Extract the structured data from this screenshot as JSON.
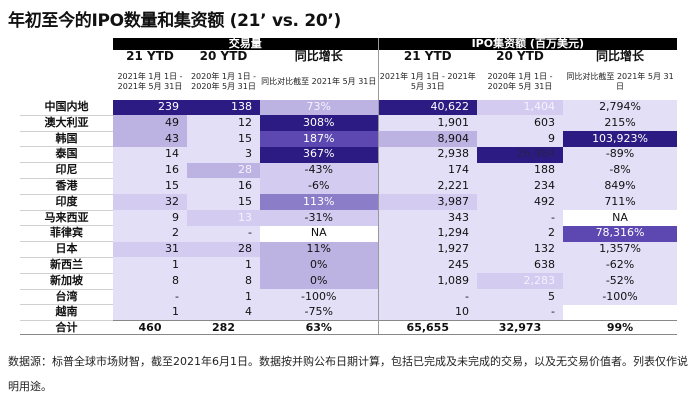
{
  "title": "年初至今的IPO数量和集资额 (21’ vs. 20’)",
  "headers": {
    "group1": "交易量",
    "group2": "IPO集资额 (百万美元)",
    "ytd21": "21 YTD",
    "ytd20": "20 YTD",
    "yoy": "同比增长",
    "d21": "2021年 1月 1日 - 2021年 5月 31日",
    "d20": "2020年 1月 1日 - 2020年 5月 31日",
    "dyoy": "同比对比截至 2021年 5月 31日"
  },
  "rows": [
    {
      "name": "中国内地",
      "v": [
        "239",
        "138",
        "73%",
        "40,622",
        "1,404",
        "2,794%"
      ],
      "s": [
        5,
        5,
        3,
        5,
        2,
        1
      ],
      "t": [
        "",
        "",
        "lt",
        "",
        "lt",
        ""
      ]
    },
    {
      "name": "澳大利亚",
      "v": [
        "49",
        "12",
        "308%",
        "1,901",
        "603",
        "215%"
      ],
      "s": [
        3,
        1,
        5,
        1,
        1,
        1
      ],
      "t": [
        "",
        "",
        "",
        "",
        "",
        ""
      ]
    },
    {
      "name": "韩国",
      "v": [
        "43",
        "15",
        "187%",
        "8,904",
        "9",
        "103,923%"
      ],
      "s": [
        3,
        1,
        6,
        3,
        1,
        5
      ],
      "t": [
        "",
        "",
        "",
        "",
        "",
        ""
      ]
    },
    {
      "name": "泰国",
      "v": [
        "14",
        "3",
        "367%",
        "2,938",
        "26,984",
        "-89%"
      ],
      "s": [
        1,
        1,
        5,
        1,
        5,
        1
      ],
      "t": [
        "",
        "",
        "",
        "",
        "dk",
        ""
      ]
    },
    {
      "name": "印尼",
      "v": [
        "16",
        "28",
        "-43%",
        "174",
        "188",
        "-8%"
      ],
      "s": [
        1,
        3,
        2,
        1,
        1,
        1
      ],
      "t": [
        "",
        "lt",
        "",
        "",
        "",
        ""
      ]
    },
    {
      "name": "香港",
      "v": [
        "15",
        "16",
        "-6%",
        "2,221",
        "234",
        "849%"
      ],
      "s": [
        1,
        1,
        2,
        1,
        1,
        1
      ],
      "t": [
        "",
        "",
        "",
        "",
        "",
        ""
      ]
    },
    {
      "name": "印度",
      "v": [
        "32",
        "15",
        "113%",
        "3,987",
        "492",
        "711%"
      ],
      "s": [
        2,
        1,
        4,
        2,
        1,
        1
      ],
      "t": [
        "",
        "",
        "",
        "",
        "",
        ""
      ]
    },
    {
      "name": "马来西亚",
      "v": [
        "9",
        "13",
        "-31%",
        "343",
        "-",
        "NA"
      ],
      "s": [
        1,
        2,
        2,
        1,
        1,
        0
      ],
      "t": [
        "",
        "lt",
        "",
        "",
        "",
        ""
      ]
    },
    {
      "name": "菲律宾",
      "v": [
        "2",
        "-",
        "NA",
        "1,294",
        "2",
        "78,316%"
      ],
      "s": [
        1,
        1,
        0,
        1,
        1,
        6
      ],
      "t": [
        "",
        "",
        "",
        "",
        "",
        ""
      ]
    },
    {
      "name": "日本",
      "v": [
        "31",
        "28",
        "11%",
        "1,927",
        "132",
        "1,357%"
      ],
      "s": [
        2,
        2,
        3,
        1,
        1,
        1
      ],
      "t": [
        "",
        "",
        "",
        "",
        "",
        ""
      ]
    },
    {
      "name": "新西兰",
      "v": [
        "1",
        "1",
        "0%",
        "245",
        "638",
        "-62%"
      ],
      "s": [
        1,
        1,
        3,
        1,
        1,
        1
      ],
      "t": [
        "",
        "",
        "",
        "",
        "",
        ""
      ]
    },
    {
      "name": "新加坡",
      "v": [
        "8",
        "8",
        "0%",
        "1,089",
        "2,283",
        "-52%"
      ],
      "s": [
        1,
        1,
        3,
        1,
        2,
        1
      ],
      "t": [
        "",
        "",
        "",
        "",
        "lt",
        ""
      ]
    },
    {
      "name": "台湾",
      "v": [
        "-",
        "1",
        "-100%",
        "-",
        "5",
        "-100%"
      ],
      "s": [
        1,
        1,
        1,
        1,
        1,
        1
      ],
      "t": [
        "",
        "",
        "",
        "",
        "",
        ""
      ]
    },
    {
      "name": "越南",
      "v": [
        "1",
        "4",
        "-75%",
        "10",
        "-",
        ""
      ],
      "s": [
        1,
        1,
        1,
        1,
        1,
        0
      ],
      "t": [
        "",
        "",
        "",
        "",
        "",
        ""
      ]
    }
  ],
  "total": {
    "name": "合计",
    "v": [
      "460",
      "282",
      "63%",
      "65,655",
      "32,973",
      "99%"
    ]
  },
  "footnote": "数据源：标普全球市场财智，截至2021年6月1日。数据按并购公布日期计算，包括已完成及未完成的交易，以及无交易价值者。列表仅作说明用途。"
}
